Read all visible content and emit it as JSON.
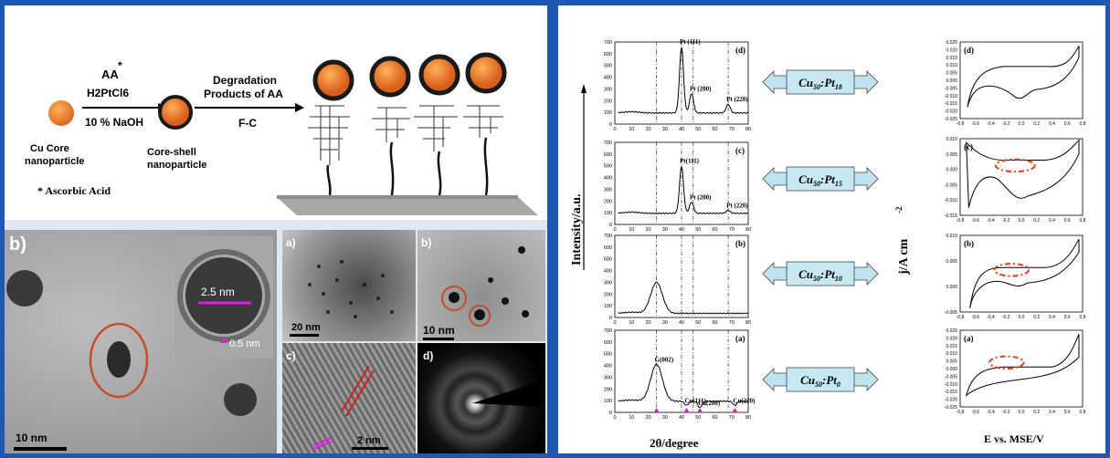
{
  "scheme": {
    "reagent_top": "AA",
    "reagent_star": "*",
    "reagent_mid": "H2PtCl6",
    "reagent_base": "10 % NaOH",
    "step2_line1": "Degradation",
    "step2_line2": "Products of AA",
    "step2_below": "F-C",
    "label_core_1": "Cu Core",
    "label_core_2": "nanoparticle",
    "label_shell_1": "Core-shell",
    "label_shell_2": "nanoparticle",
    "footnote": "* Ascorbic Acid"
  },
  "tem": {
    "main_label": "b)",
    "main_scale": "10 nm",
    "inset_size": "2.5 nm",
    "inset_shell": "0.5 nm",
    "a_label": "a)",
    "a_scale": "20 nm",
    "b_label": "b)",
    "b_scale": "10 nm",
    "c_label": "c)",
    "c_scale": "2 nm",
    "d_label": "d)"
  },
  "xrd": {
    "ylabel": "Intensity/a.u.",
    "xlabel": "2θ/degree",
    "xticks": [
      "0",
      "10",
      "20",
      "30",
      "40",
      "50",
      "60",
      "70",
      "80"
    ],
    "panels": [
      {
        "tag": "(d)",
        "yticks": [
          "0",
          "100",
          "200",
          "300",
          "400",
          "500",
          "600",
          "700"
        ],
        "ymax": 700,
        "peaks": [
          {
            "label": "Pt (111)",
            "x": 40,
            "h": 660
          },
          {
            "label": "Pt (200)",
            "x": 46,
            "h": 260
          },
          {
            "label": "Pt (220)",
            "x": 68,
            "h": 170
          }
        ]
      },
      {
        "tag": "(c)",
        "yticks": [
          "0",
          "100",
          "200",
          "300",
          "400",
          "500",
          "600",
          "700"
        ],
        "ymax": 700,
        "peaks": [
          {
            "label": "Pt(111)",
            "x": 40,
            "h": 500
          },
          {
            "label": "Pt (200)",
            "x": 46,
            "h": 190
          },
          {
            "label": "Pt (220)",
            "x": 68,
            "h": 120
          }
        ]
      },
      {
        "tag": "(b)",
        "yticks": [
          "0",
          "100",
          "200",
          "300",
          "400",
          "500",
          "600",
          "700"
        ],
        "ymax": 700,
        "peaks": [
          {
            "label": "",
            "x": 25,
            "h": 300
          }
        ]
      },
      {
        "tag": "(a)",
        "yticks": [
          "0",
          "100",
          "200",
          "300",
          "400",
          "500",
          "600",
          "700"
        ],
        "ymax": 700,
        "peaks": [
          {
            "label": "G(002)",
            "x": 25,
            "h": 410
          },
          {
            "label": "Cu(111)",
            "x": 43,
            "h": 60
          },
          {
            "label": "Cu(200)",
            "x": 51,
            "h": 40
          },
          {
            "label": "Cu(220)",
            "x": 72,
            "h": 60
          }
        ]
      }
    ]
  },
  "compositions": [
    {
      "base": "Cu",
      "sub1": "50",
      "sep": ":",
      "el": "Pt",
      "sub2": "18"
    },
    {
      "base": "Cu",
      "sub1": "50",
      "sep": ":",
      "el": "Pt",
      "sub2": "15"
    },
    {
      "base": "Cu",
      "sub1": "50",
      "sep": ":",
      "el": "Pt",
      "sub2": "10"
    },
    {
      "base": "Cu",
      "sub1": "50",
      "sep": ":",
      "el": "Pt",
      "sub2": "0"
    }
  ],
  "cv": {
    "ylabel": "j/A cm",
    "ylabel_sup": "-2",
    "xlabel": "E vs. MSE/V",
    "xticks": [
      "-0.8",
      "-0.6",
      "-0.4",
      "-0.2",
      "0.0",
      "0.2",
      "0.4",
      "0.6",
      "0.8"
    ],
    "panels": [
      {
        "tag": "(d)",
        "yticks": [
          "0.025",
          "0.020",
          "0.015",
          "0.010",
          "0.005",
          "0.000",
          "-0.005",
          "-0.010",
          "-0.015",
          "-0.020",
          "-0.025"
        ]
      },
      {
        "tag": "(c)",
        "yticks": [
          "0.010",
          "0.005",
          "0.000",
          "-0.005",
          "-0.010",
          "-0.015"
        ]
      },
      {
        "tag": "(b)",
        "yticks": [
          "0.010",
          "0.005",
          "0.000",
          "-0.005"
        ]
      },
      {
        "tag": "(a)",
        "yticks": [
          "0.025",
          "0.020",
          "0.015",
          "0.010",
          "0.005",
          "0.000",
          "-0.005",
          "-0.010",
          "-0.015",
          "-0.020",
          "-0.025"
        ]
      }
    ]
  }
}
